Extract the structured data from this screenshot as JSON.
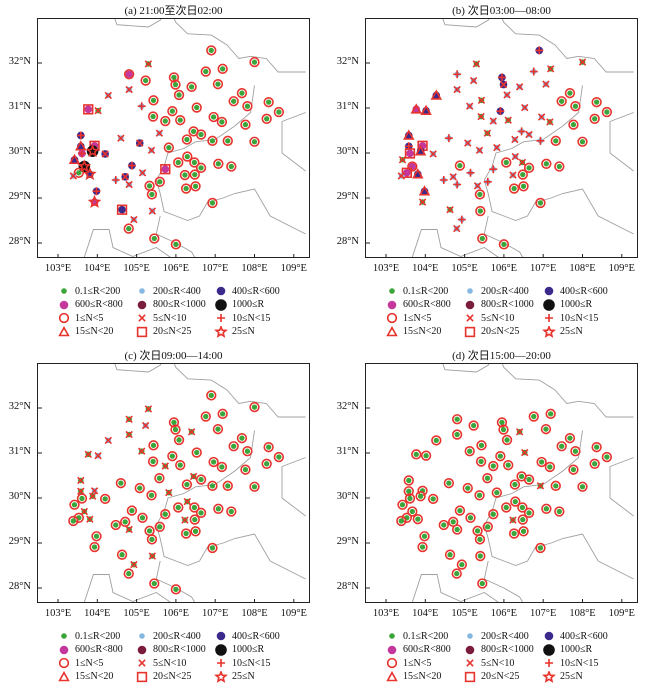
{
  "chart_data": {
    "type": "scatter",
    "panels": [
      {
        "title": "(a) 21:00至次日02:00",
        "codes": "30 00 00 00 00 00 00 11 11 00 00 34 01 12 00 00 00 00 00 00 00 00 00 00 00 00 00 00 00 22 11 21 11 00 00 00 00 00 00 23 34 32 55 21 11 00 23 55 00 11 25 22 11 00 00 00 00 00 00 34 00 00 12 21 11 00 00 00 00 00 22 35 24 11 11 00 00 00 00 00 00 01"
      },
      {
        "title": "(b) 次日03:00—08:00",
        "codes": "12 11 22 21 12 01 11 23 11 11 11 33 23 11 01 22 11 01 11 01 11 01 00 00 00 00 00 00 00 23 12 11 01 11 12 11 12 00 00 22 34 34 23 11 11 11 01 30 34 11 23 00 12 00 11 01 00 00 11 12 00 00 12 11 12 11 12 00 00 00 23 01 01 00 12 11 00 00 22 01 00 01"
      },
      {
        "title": "(c) 次日09:00—14:00",
        "codes": "01 11 00 00 00 00 00 11 01 00 01 01 11 01 00 00 00 00 01 00 00 00 00 00 00 00 00 00 00 01 00 00 00 00 01 00 00 00 00 01 11 00 01 00 00 01 00 01 00 00 01 00 00 00 01 00 00 00 01 00 00 00 00 00 01 00 00 00 00 00 00 00 00 01 01 00 00 00 00 00 00 01"
      },
      {
        "title": "(d) 次日15:00—20:00",
        "codes": "00 00 00 00 00 00 00 00 00 00 01 00 00 00 00 00 01 00 00 00 00 00 00 00 00 00 00 00 00 00 00 00 00 00 00 00 01 00 00 00 00 00 00 00 00 00 00 00 00 00 00 00 00 00 00 00 00 00 01 00 00 00 00 00 00 00 00 00 00 00 00 00 00 00 00 00 00 00 -- -- -- --"
      }
    ],
    "stations": [
      [
        104.81,
        31.75
      ],
      [
        105.23,
        31.61
      ],
      [
        105.95,
        31.68
      ],
      [
        105.99,
        31.52
      ],
      [
        106.76,
        31.81
      ],
      [
        107.19,
        31.87
      ],
      [
        107.07,
        31.53
      ],
      [
        104.28,
        31.28
      ],
      [
        104.81,
        31.41
      ],
      [
        106.08,
        31.29
      ],
      [
        106.4,
        31.47
      ],
      [
        103.77,
        30.97
      ],
      [
        104.02,
        30.94
      ],
      [
        105.13,
        31.04
      ],
      [
        105.43,
        31.17
      ],
      [
        105.91,
        30.93
      ],
      [
        106.53,
        31.01
      ],
      [
        105.42,
        30.81
      ],
      [
        105.73,
        30.71
      ],
      [
        106.11,
        30.73
      ],
      [
        106.96,
        30.8
      ],
      [
        107.17,
        30.69
      ],
      [
        107.47,
        31.15
      ],
      [
        107.68,
        31.33
      ],
      [
        107.82,
        31.04
      ],
      [
        108.36,
        31.13
      ],
      [
        108.62,
        30.91
      ],
      [
        108.31,
        30.76
      ],
      [
        107.77,
        30.63
      ],
      [
        103.58,
        30.39
      ],
      [
        104.6,
        30.33
      ],
      [
        105.08,
        30.22
      ],
      [
        105.58,
        30.44
      ],
      [
        106.28,
        30.3
      ],
      [
        106.45,
        30.48
      ],
      [
        106.64,
        30.41
      ],
      [
        106.93,
        30.27
      ],
      [
        107.32,
        30.27
      ],
      [
        108.0,
        30.25
      ],
      [
        103.58,
        30.15
      ],
      [
        103.93,
        30.16
      ],
      [
        103.61,
        29.99
      ],
      [
        103.88,
        30.04
      ],
      [
        104.2,
        29.98
      ],
      [
        105.38,
        30.06
      ],
      [
        105.82,
        30.12
      ],
      [
        103.42,
        29.85
      ],
      [
        103.67,
        29.7
      ],
      [
        103.53,
        29.56
      ],
      [
        103.39,
        29.49
      ],
      [
        103.81,
        29.53
      ],
      [
        104.88,
        29.72
      ],
      [
        105.15,
        29.56
      ],
      [
        106.06,
        29.79
      ],
      [
        106.29,
        29.92
      ],
      [
        106.47,
        29.79
      ],
      [
        106.64,
        29.67
      ],
      [
        106.48,
        29.52
      ],
      [
        106.23,
        29.51
      ],
      [
        105.73,
        29.64
      ],
      [
        107.08,
        29.76
      ],
      [
        107.41,
        29.7
      ],
      [
        104.47,
        29.4
      ],
      [
        104.71,
        29.47
      ],
      [
        104.81,
        29.3
      ],
      [
        105.33,
        29.27
      ],
      [
        105.59,
        29.36
      ],
      [
        105.39,
        29.08
      ],
      [
        106.26,
        29.21
      ],
      [
        106.5,
        29.26
      ],
      [
        103.98,
        29.15
      ],
      [
        103.93,
        28.91
      ],
      [
        104.63,
        28.74
      ],
      [
        105.4,
        28.71
      ],
      [
        104.93,
        28.52
      ],
      [
        104.8,
        28.32
      ],
      [
        105.45,
        28.1
      ],
      [
        106.93,
        28.89
      ],
      [
        106.9,
        32.28
      ],
      [
        108.0,
        32.02
      ],
      [
        106.0,
        27.97
      ],
      [
        105.3,
        31.98
      ]
    ],
    "boundaries": [
      [
        [
          104.4,
          33.1
        ],
        [
          104.5,
          32.85
        ],
        [
          105.3,
          32.8
        ],
        [
          105.6,
          32.95
        ],
        [
          105.7,
          33.1
        ]
      ],
      [
        [
          105.9,
          33.1
        ],
        [
          106.0,
          32.9
        ],
        [
          106.3,
          32.65
        ],
        [
          106.9,
          32.62
        ],
        [
          107.3,
          32.4
        ],
        [
          107.6,
          32.1
        ],
        [
          107.9,
          32.15
        ],
        [
          108.3,
          32.1
        ],
        [
          108.6,
          31.8
        ],
        [
          109.3,
          31.8
        ]
      ],
      [
        [
          109.3,
          30.9
        ],
        [
          108.7,
          30.7
        ],
        [
          108.7,
          30.0
        ],
        [
          109.3,
          29.6
        ]
      ],
      [
        [
          108.0,
          31.5
        ],
        [
          107.9,
          30.9
        ],
        [
          107.5,
          30.6
        ],
        [
          107.0,
          30.3
        ],
        [
          106.5,
          30.25
        ],
        [
          106.2,
          30.1
        ],
        [
          105.8,
          30.0
        ],
        [
          105.7,
          29.7
        ],
        [
          105.5,
          29.4
        ],
        [
          105.6,
          29.1
        ],
        [
          105.7,
          28.7
        ],
        [
          106.0,
          28.6
        ],
        [
          106.3,
          28.5
        ],
        [
          106.6,
          28.6
        ],
        [
          106.8,
          28.9
        ],
        [
          107.2,
          29.0
        ],
        [
          107.5,
          29.1
        ],
        [
          108.0,
          29.2
        ],
        [
          108.4,
          28.6
        ],
        [
          109.3,
          28.2
        ]
      ],
      [
        [
          103.6,
          27.5
        ],
        [
          103.9,
          28.3
        ],
        [
          104.3,
          28.3
        ],
        [
          104.4,
          27.9
        ],
        [
          104.9,
          27.7
        ],
        [
          105.5,
          27.9
        ],
        [
          106.0,
          27.6
        ]
      ],
      [
        [
          105.6,
          28.6
        ],
        [
          105.5,
          28.2
        ],
        [
          106.0,
          28.0
        ],
        [
          106.4,
          27.8
        ],
        [
          106.6,
          27.5
        ]
      ]
    ],
    "lat_ticks": [
      "32°N",
      "31°N",
      "30°N",
      "29°N",
      "28°N"
    ],
    "lat_values": [
      32,
      31,
      30,
      29,
      28
    ],
    "lon_ticks": [
      "103°E",
      "104°E",
      "105°E",
      "106°E",
      "107°E",
      "108°E",
      "109°E"
    ],
    "lon_values": [
      103,
      104,
      105,
      106,
      107,
      108,
      109
    ],
    "xlim": [
      102.5,
      109.45
    ],
    "ylim": [
      27.6,
      33.0
    ]
  },
  "legend": {
    "rain": [
      {
        "label": "0.1≤R<200",
        "color": "#3aa53a",
        "size": "small"
      },
      {
        "label": "200≤R<400",
        "color": "#86b6e2",
        "size": "small"
      },
      {
        "label": "400≤R<600",
        "color": "#3b2a8c",
        "size": "mid"
      },
      {
        "label": "600≤R<800",
        "color": "#c4389c",
        "size": "mid"
      },
      {
        "label": "800≤R<1000",
        "color": "#7a1d3c",
        "size": "mid"
      },
      {
        "label": "1000≤R",
        "color": "#111111",
        "size": "big"
      }
    ],
    "count": [
      {
        "label": "1≤N<5",
        "shape": "circle"
      },
      {
        "label": "5≤N<10",
        "shape": "x"
      },
      {
        "label": "10≤N<15",
        "shape": "plus"
      },
      {
        "label": "15≤N<20",
        "shape": "triangle"
      },
      {
        "label": "20≤N<25",
        "shape": "square"
      },
      {
        "label": "25≤N",
        "shape": "star"
      }
    ],
    "marker_color": "#e8322c"
  }
}
